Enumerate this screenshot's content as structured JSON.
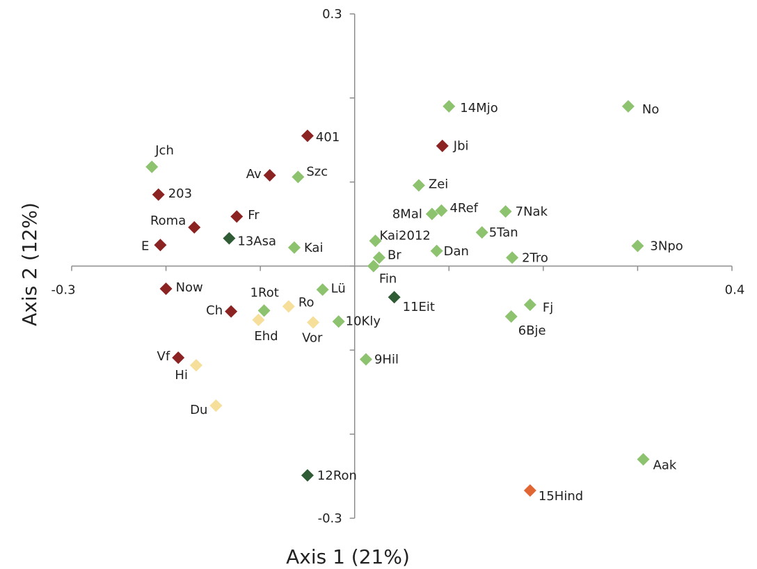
{
  "chart_data": {
    "type": "scatter",
    "title": "",
    "xlabel": "Axis 1 (21%)",
    "ylabel": "Axis 2 (12%)",
    "xlim": [
      -0.3,
      0.4
    ],
    "ylim": [
      -0.3,
      0.3
    ],
    "x_tick_labels": [
      "-0.3",
      "0.4"
    ],
    "y_tick_labels": [
      "0.3",
      "-0.3"
    ],
    "grid": false,
    "legend": "none",
    "colors": {
      "dark_red": "#8b2323",
      "light_green": "#8dc26f",
      "dark_green": "#2f5b35",
      "pale_yellow": "#f6df9a",
      "orange": "#e26634"
    },
    "points": [
      {
        "label": "14Mjo",
        "x": 0.1,
        "y": 0.19,
        "color": "light_green"
      },
      {
        "label": "No",
        "x": 0.29,
        "y": 0.19,
        "color": "light_green"
      },
      {
        "label": "401",
        "x": -0.05,
        "y": 0.155,
        "color": "dark_red"
      },
      {
        "label": "Jbi",
        "x": 0.093,
        "y": 0.143,
        "color": "dark_red"
      },
      {
        "label": "Jch",
        "x": -0.215,
        "y": 0.118,
        "color": "light_green"
      },
      {
        "label": "Av",
        "x": -0.09,
        "y": 0.108,
        "color": "dark_red"
      },
      {
        "label": "Szc",
        "x": -0.06,
        "y": 0.106,
        "color": "light_green"
      },
      {
        "label": "Zei",
        "x": 0.068,
        "y": 0.096,
        "color": "light_green"
      },
      {
        "label": "203",
        "x": -0.208,
        "y": 0.085,
        "color": "dark_red"
      },
      {
        "label": "8Mal",
        "x": 0.082,
        "y": 0.062,
        "color": "light_green"
      },
      {
        "label": "4Ref",
        "x": 0.092,
        "y": 0.066,
        "color": "light_green"
      },
      {
        "label": "7Nak",
        "x": 0.16,
        "y": 0.065,
        "color": "light_green"
      },
      {
        "label": "Fr",
        "x": -0.125,
        "y": 0.059,
        "color": "dark_red"
      },
      {
        "label": "Roma",
        "x": -0.17,
        "y": 0.046,
        "color": "dark_red"
      },
      {
        "label": "5Tan",
        "x": 0.135,
        "y": 0.04,
        "color": "light_green"
      },
      {
        "label": "13Asa",
        "x": -0.133,
        "y": 0.033,
        "color": "dark_green"
      },
      {
        "label": "Kai2012",
        "x": 0.022,
        "y": 0.03,
        "color": "light_green"
      },
      {
        "label": "E",
        "x": -0.206,
        "y": 0.025,
        "color": "dark_red"
      },
      {
        "label": "Kai",
        "x": -0.064,
        "y": 0.022,
        "color": "light_green"
      },
      {
        "label": "3Npo",
        "x": 0.3,
        "y": 0.024,
        "color": "light_green"
      },
      {
        "label": "Dan",
        "x": 0.087,
        "y": 0.018,
        "color": "light_green"
      },
      {
        "label": "2Tro",
        "x": 0.167,
        "y": 0.01,
        "color": "light_green"
      },
      {
        "label": "Br",
        "x": 0.026,
        "y": 0.01,
        "color": "light_green"
      },
      {
        "label": "Fin",
        "x": 0.02,
        "y": 0.0,
        "color": "light_green"
      },
      {
        "label": "Now",
        "x": -0.2,
        "y": -0.027,
        "color": "dark_red"
      },
      {
        "label": "Lü",
        "x": -0.034,
        "y": -0.028,
        "color": "light_green"
      },
      {
        "label": "11Eit",
        "x": 0.042,
        "y": -0.037,
        "color": "dark_green"
      },
      {
        "label": "Ro",
        "x": -0.07,
        "y": -0.048,
        "color": "pale_yellow"
      },
      {
        "label": "Fj",
        "x": 0.186,
        "y": -0.046,
        "color": "light_green"
      },
      {
        "label": "1Rot",
        "x": -0.096,
        "y": -0.053,
        "color": "light_green"
      },
      {
        "label": "Ch",
        "x": -0.131,
        "y": -0.054,
        "color": "dark_red"
      },
      {
        "label": "6Bje",
        "x": 0.166,
        "y": -0.06,
        "color": "light_green"
      },
      {
        "label": "Ehd",
        "x": -0.102,
        "y": -0.064,
        "color": "pale_yellow"
      },
      {
        "label": "10Kly",
        "x": -0.017,
        "y": -0.066,
        "color": "light_green"
      },
      {
        "label": "Vor",
        "x": -0.044,
        "y": -0.067,
        "color": "pale_yellow"
      },
      {
        "label": "Vf",
        "x": -0.187,
        "y": -0.109,
        "color": "dark_red"
      },
      {
        "label": "9Hil",
        "x": 0.012,
        "y": -0.111,
        "color": "light_green"
      },
      {
        "label": "Hi",
        "x": -0.168,
        "y": -0.118,
        "color": "pale_yellow"
      },
      {
        "label": "Du",
        "x": -0.147,
        "y": -0.166,
        "color": "pale_yellow"
      },
      {
        "label": "Aak",
        "x": 0.306,
        "y": -0.23,
        "color": "light_green"
      },
      {
        "label": "12Ron",
        "x": -0.05,
        "y": -0.249,
        "color": "dark_green"
      },
      {
        "label": "15Hind",
        "x": 0.186,
        "y": -0.267,
        "color": "orange"
      }
    ]
  }
}
